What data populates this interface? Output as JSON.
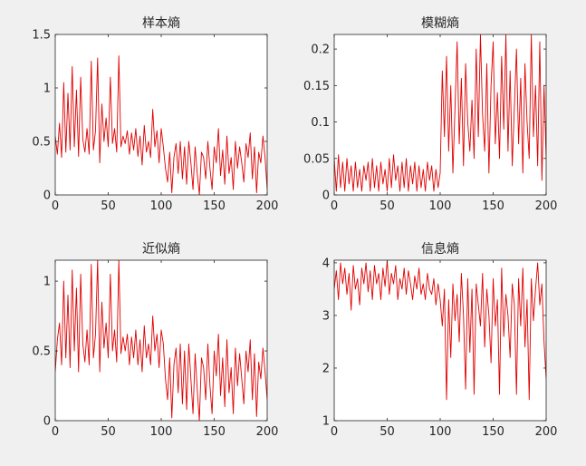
{
  "figure": {
    "background": "#f0f0f0",
    "line_color": "#e00000"
  },
  "chart_data": [
    {
      "type": "line",
      "title": "样本熵",
      "xlim": [
        0,
        200
      ],
      "ylim": [
        0,
        1.5
      ],
      "xticks": [
        0,
        50,
        100,
        150,
        200
      ],
      "yticks": [
        0,
        0.5,
        1,
        1.5
      ],
      "xtick_labels": [
        "0",
        "50",
        "100",
        "150",
        "200"
      ],
      "ytick_labels": [
        "0",
        "0.5",
        "1",
        "1.5"
      ],
      "grid": false,
      "series": [
        {
          "color": "#e00000",
          "x": [
            0,
            2,
            4,
            6,
            8,
            10,
            12,
            14,
            16,
            18,
            20,
            22,
            24,
            26,
            28,
            30,
            32,
            34,
            36,
            38,
            40,
            42,
            44,
            46,
            48,
            50,
            52,
            54,
            56,
            58,
            60,
            62,
            64,
            66,
            68,
            70,
            72,
            74,
            76,
            78,
            80,
            82,
            84,
            86,
            88,
            90,
            92,
            94,
            96,
            98,
            100,
            102,
            104,
            106,
            108,
            110,
            112,
            114,
            116,
            118,
            120,
            122,
            124,
            126,
            128,
            130,
            132,
            134,
            136,
            138,
            140,
            142,
            144,
            146,
            148,
            150,
            152,
            154,
            156,
            158,
            160,
            162,
            164,
            166,
            168,
            170,
            172,
            174,
            176,
            178,
            180,
            182,
            184,
            186,
            188,
            190,
            192,
            194,
            196,
            198,
            200
          ],
          "y": [
            0.55,
            0.38,
            0.67,
            0.35,
            1.05,
            0.4,
            0.95,
            0.42,
            1.2,
            0.45,
            0.98,
            0.36,
            1.1,
            0.52,
            0.4,
            0.62,
            0.38,
            1.25,
            0.42,
            0.6,
            1.28,
            0.3,
            0.85,
            0.5,
            0.72,
            0.45,
            1.1,
            0.48,
            0.62,
            0.4,
            1.3,
            0.45,
            0.55,
            0.48,
            0.6,
            0.38,
            0.58,
            0.42,
            0.62,
            0.36,
            0.55,
            0.28,
            0.65,
            0.4,
            0.5,
            0.35,
            0.8,
            0.45,
            0.6,
            0.3,
            0.62,
            0.45,
            0.25,
            0.12,
            0.4,
            0.02,
            0.35,
            0.48,
            0.2,
            0.5,
            0.15,
            0.45,
            0.1,
            0.5,
            0.3,
            0.05,
            0.45,
            0.2,
            0.0,
            0.4,
            0.35,
            0.15,
            0.5,
            0.25,
            0.05,
            0.45,
            0.3,
            0.62,
            0.18,
            0.42,
            0.1,
            0.55,
            0.2,
            0.35,
            0.05,
            0.5,
            0.25,
            0.45,
            0.3,
            0.12,
            0.48,
            0.35,
            0.58,
            0.15,
            0.45,
            0.02,
            0.4,
            0.3,
            0.55,
            0.35,
            0.05
          ]
        }
      ]
    },
    {
      "type": "line",
      "title": "模糊熵",
      "xlim": [
        0,
        200
      ],
      "ylim": [
        0,
        0.22
      ],
      "xticks": [
        0,
        50,
        100,
        150,
        200
      ],
      "yticks": [
        0,
        0.05,
        0.1,
        0.15,
        0.2
      ],
      "xtick_labels": [
        "0",
        "50",
        "100",
        "150",
        "200"
      ],
      "ytick_labels": [
        "0",
        "0.05",
        "0.1",
        "0.15",
        "0.2"
      ],
      "grid": false,
      "series": [
        {
          "color": "#e00000",
          "x": [
            0,
            2,
            4,
            6,
            8,
            10,
            12,
            14,
            16,
            18,
            20,
            22,
            24,
            26,
            28,
            30,
            32,
            34,
            36,
            38,
            40,
            42,
            44,
            46,
            48,
            50,
            52,
            54,
            56,
            58,
            60,
            62,
            64,
            66,
            68,
            70,
            72,
            74,
            76,
            78,
            80,
            82,
            84,
            86,
            88,
            90,
            92,
            94,
            96,
            98,
            100,
            102,
            104,
            106,
            108,
            110,
            112,
            114,
            116,
            118,
            120,
            122,
            124,
            126,
            128,
            130,
            132,
            134,
            136,
            138,
            140,
            142,
            144,
            146,
            148,
            150,
            152,
            154,
            156,
            158,
            160,
            162,
            164,
            166,
            168,
            170,
            172,
            174,
            176,
            178,
            180,
            182,
            184,
            186,
            188,
            190,
            192,
            194,
            196,
            198,
            200
          ],
          "y": [
            0.05,
            0.005,
            0.055,
            0.01,
            0.045,
            0.005,
            0.05,
            0.015,
            0.04,
            0.005,
            0.045,
            0.01,
            0.035,
            0.005,
            0.04,
            0.02,
            0.045,
            0.005,
            0.05,
            0.01,
            0.04,
            0.005,
            0.045,
            0.015,
            0.035,
            0.005,
            0.05,
            0.01,
            0.055,
            0.02,
            0.04,
            0.005,
            0.045,
            0.01,
            0.05,
            0.005,
            0.04,
            0.015,
            0.045,
            0.005,
            0.04,
            0.01,
            0.035,
            0.005,
            0.045,
            0.02,
            0.04,
            0.005,
            0.035,
            0.01,
            0.03,
            0.17,
            0.08,
            0.19,
            0.06,
            0.15,
            0.03,
            0.12,
            0.21,
            0.07,
            0.16,
            0.04,
            0.18,
            0.1,
            0.06,
            0.13,
            0.05,
            0.2,
            0.08,
            0.22,
            0.11,
            0.06,
            0.18,
            0.03,
            0.15,
            0.21,
            0.07,
            0.14,
            0.05,
            0.19,
            0.09,
            0.22,
            0.06,
            0.17,
            0.04,
            0.12,
            0.2,
            0.07,
            0.16,
            0.03,
            0.18,
            0.1,
            0.05,
            0.22,
            0.08,
            0.15,
            0.04,
            0.21,
            0.02,
            0.15,
            0.05
          ]
        }
      ]
    },
    {
      "type": "line",
      "title": "近似熵",
      "xlim": [
        0,
        200
      ],
      "ylim": [
        0,
        1.15
      ],
      "xticks": [
        0,
        50,
        100,
        150,
        200
      ],
      "yticks": [
        0,
        0.5,
        1
      ],
      "xtick_labels": [
        "0",
        "50",
        "100",
        "150",
        "200"
      ],
      "ytick_labels": [
        "0",
        "0.5",
        "1"
      ],
      "grid": false,
      "series": [
        {
          "color": "#e00000",
          "x": [
            0,
            2,
            4,
            6,
            8,
            10,
            12,
            14,
            16,
            18,
            20,
            22,
            24,
            26,
            28,
            30,
            32,
            34,
            36,
            38,
            40,
            42,
            44,
            46,
            48,
            50,
            52,
            54,
            56,
            58,
            60,
            62,
            64,
            66,
            68,
            70,
            72,
            74,
            76,
            78,
            80,
            82,
            84,
            86,
            88,
            90,
            92,
            94,
            96,
            98,
            100,
            102,
            104,
            106,
            108,
            110,
            112,
            114,
            116,
            118,
            120,
            122,
            124,
            126,
            128,
            130,
            132,
            134,
            136,
            138,
            140,
            142,
            144,
            146,
            148,
            150,
            152,
            154,
            156,
            158,
            160,
            162,
            164,
            166,
            168,
            170,
            172,
            174,
            176,
            178,
            180,
            182,
            184,
            186,
            188,
            190,
            192,
            194,
            196,
            198,
            200
          ],
          "y": [
            0.35,
            0.58,
            0.7,
            0.4,
            1.0,
            0.45,
            0.9,
            0.38,
            1.08,
            0.5,
            0.95,
            0.35,
            1.05,
            0.55,
            0.42,
            0.65,
            0.4,
            1.12,
            0.45,
            0.62,
            1.15,
            0.35,
            0.85,
            0.52,
            0.7,
            0.45,
            1.05,
            0.5,
            0.65,
            0.42,
            1.15,
            0.48,
            0.6,
            0.5,
            0.62,
            0.4,
            0.6,
            0.45,
            0.65,
            0.4,
            0.58,
            0.35,
            0.68,
            0.45,
            0.55,
            0.4,
            0.75,
            0.5,
            0.62,
            0.38,
            0.65,
            0.55,
            0.3,
            0.15,
            0.45,
            0.02,
            0.4,
            0.52,
            0.2,
            0.55,
            0.12,
            0.5,
            0.08,
            0.55,
            0.3,
            0.05,
            0.48,
            0.22,
            0.0,
            0.45,
            0.38,
            0.15,
            0.55,
            0.25,
            0.05,
            0.5,
            0.32,
            0.62,
            0.18,
            0.45,
            0.1,
            0.58,
            0.2,
            0.38,
            0.05,
            0.52,
            0.25,
            0.48,
            0.3,
            0.12,
            0.5,
            0.35,
            0.58,
            0.15,
            0.48,
            0.03,
            0.42,
            0.3,
            0.52,
            0.35,
            0.15
          ]
        }
      ]
    },
    {
      "type": "line",
      "title": "信息熵",
      "xlim": [
        0,
        200
      ],
      "ylim": [
        1,
        4.05
      ],
      "xticks": [
        0,
        50,
        100,
        150,
        200
      ],
      "yticks": [
        1,
        2,
        3,
        4
      ],
      "xtick_labels": [
        "0",
        "50",
        "100",
        "150",
        "200"
      ],
      "ytick_labels": [
        "1",
        "2",
        "3",
        "4"
      ],
      "grid": false,
      "series": [
        {
          "color": "#e00000",
          "x": [
            0,
            2,
            4,
            6,
            8,
            10,
            12,
            14,
            16,
            18,
            20,
            22,
            24,
            26,
            28,
            30,
            32,
            34,
            36,
            38,
            40,
            42,
            44,
            46,
            48,
            50,
            52,
            54,
            56,
            58,
            60,
            62,
            64,
            66,
            68,
            70,
            72,
            74,
            76,
            78,
            80,
            82,
            84,
            86,
            88,
            90,
            92,
            94,
            96,
            98,
            100,
            102,
            104,
            106,
            108,
            110,
            112,
            114,
            116,
            118,
            120,
            122,
            124,
            126,
            128,
            130,
            132,
            134,
            136,
            138,
            140,
            142,
            144,
            146,
            148,
            150,
            152,
            154,
            156,
            158,
            160,
            162,
            164,
            166,
            168,
            170,
            172,
            174,
            176,
            178,
            180,
            182,
            184,
            186,
            188,
            190,
            192,
            194,
            196,
            198,
            200
          ],
          "y": [
            3.5,
            3.85,
            3.3,
            4.0,
            3.6,
            3.9,
            3.4,
            3.8,
            3.1,
            3.95,
            3.5,
            3.7,
            3.2,
            3.9,
            3.6,
            4.0,
            3.45,
            3.85,
            3.3,
            3.95,
            3.6,
            3.8,
            3.3,
            3.9,
            3.55,
            4.05,
            3.4,
            3.8,
            3.6,
            3.95,
            3.3,
            3.7,
            3.5,
            3.9,
            3.4,
            3.85,
            3.6,
            3.3,
            3.75,
            3.5,
            3.9,
            3.4,
            3.6,
            3.3,
            3.8,
            3.5,
            3.4,
            3.7,
            3.2,
            3.6,
            3.3,
            2.8,
            3.5,
            1.4,
            3.3,
            2.2,
            3.6,
            2.9,
            3.4,
            2.5,
            3.8,
            3.0,
            1.6,
            3.7,
            2.3,
            3.5,
            1.5,
            3.6,
            3.2,
            2.8,
            3.8,
            2.4,
            3.5,
            3.0,
            2.1,
            3.7,
            2.8,
            3.3,
            1.5,
            3.9,
            2.6,
            3.4,
            3.0,
            2.2,
            3.6,
            3.2,
            1.5,
            3.7,
            2.8,
            3.9,
            2.4,
            3.3,
            1.4,
            3.7,
            2.9,
            3.5,
            4.0,
            3.2,
            3.6,
            2.5,
            1.8
          ]
        }
      ]
    }
  ]
}
